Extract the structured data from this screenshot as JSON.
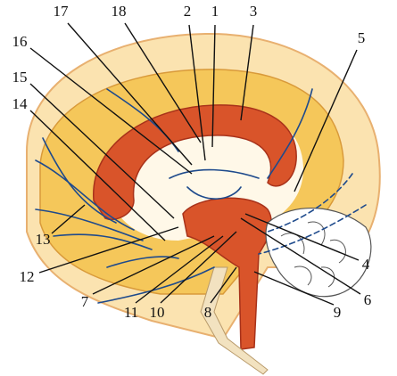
{
  "labels": [
    "1",
    "2",
    "3",
    "4",
    "5",
    "6",
    "7",
    "8",
    "9",
    "10",
    "11",
    "12",
    "13",
    "14",
    "15",
    "16",
    "17",
    "18"
  ]
}
